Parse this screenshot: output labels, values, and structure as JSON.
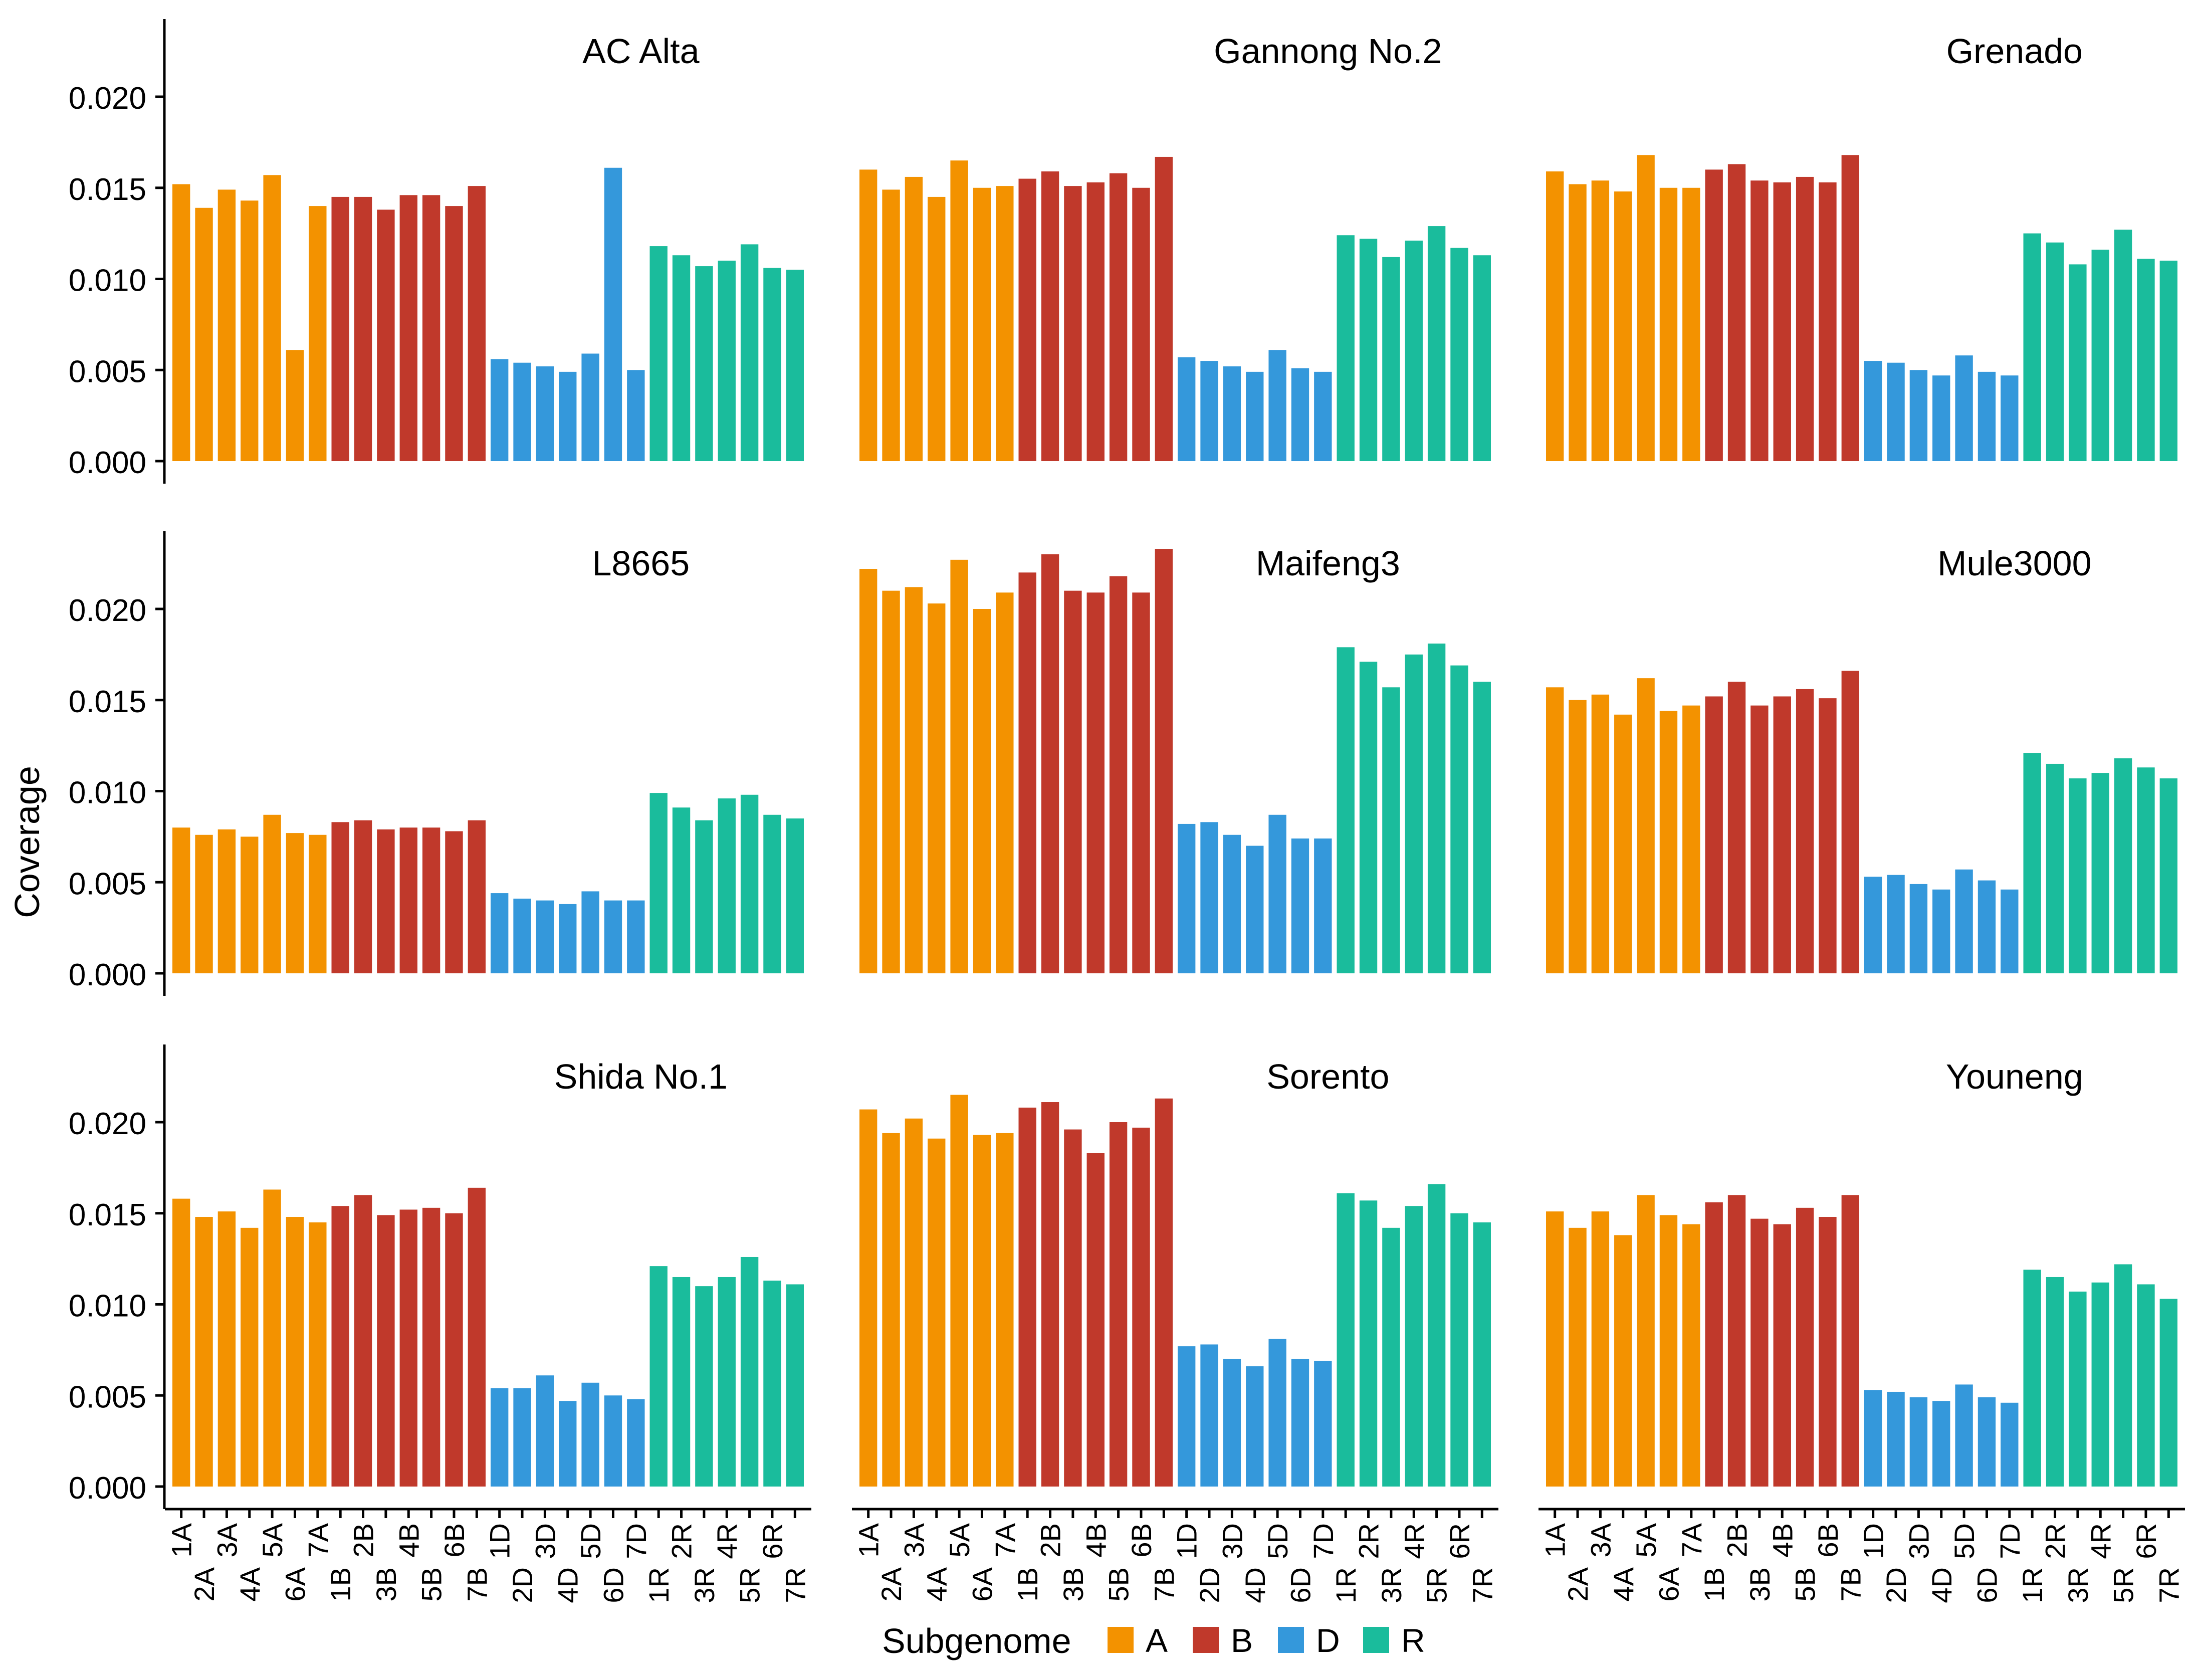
{
  "chart_data": {
    "type": "bar",
    "layout": "faceted 3x3 grid",
    "ylabel": "Coverage",
    "ylim": [
      0,
      0.024
    ],
    "yticks": [
      "0.000",
      "0.005",
      "0.010",
      "0.015",
      "0.020"
    ],
    "grid": false,
    "categories": [
      "1A",
      "2A",
      "3A",
      "4A",
      "5A",
      "6A",
      "7A",
      "1B",
      "2B",
      "3B",
      "4B",
      "5B",
      "6B",
      "7B",
      "1D",
      "2D",
      "3D",
      "4D",
      "5D",
      "6D",
      "7D",
      "1R",
      "2R",
      "3R",
      "4R",
      "5R",
      "6R",
      "7R"
    ],
    "legend": {
      "title": "Subgenome",
      "placement": "bottom-center",
      "entries": [
        {
          "label": "A",
          "color": "#F39200"
        },
        {
          "label": "B",
          "color": "#C0392B"
        },
        {
          "label": "D",
          "color": "#3498DB"
        },
        {
          "label": "R",
          "color": "#1ABC9C"
        }
      ]
    },
    "panels": [
      {
        "title": "AC Alta",
        "values": [
          0.0152,
          0.0139,
          0.0149,
          0.0143,
          0.0157,
          0.0061,
          0.014,
          0.0145,
          0.0145,
          0.0138,
          0.0146,
          0.0146,
          0.014,
          0.0151,
          0.0056,
          0.0054,
          0.0052,
          0.0049,
          0.0059,
          0.0161,
          0.005,
          0.0118,
          0.0113,
          0.0107,
          0.011,
          0.0119,
          0.0106,
          0.0105
        ]
      },
      {
        "title": "Gannong No.2",
        "values": [
          0.016,
          0.0149,
          0.0156,
          0.0145,
          0.0165,
          0.015,
          0.0151,
          0.0155,
          0.0159,
          0.0151,
          0.0153,
          0.0158,
          0.015,
          0.0167,
          0.0057,
          0.0055,
          0.0052,
          0.0049,
          0.0061,
          0.0051,
          0.0049,
          0.0124,
          0.0122,
          0.0112,
          0.0121,
          0.0129,
          0.0117,
          0.0113
        ]
      },
      {
        "title": "Grenado",
        "values": [
          0.0159,
          0.0152,
          0.0154,
          0.0148,
          0.0168,
          0.015,
          0.015,
          0.016,
          0.0163,
          0.0154,
          0.0153,
          0.0156,
          0.0153,
          0.0168,
          0.0055,
          0.0054,
          0.005,
          0.0047,
          0.0058,
          0.0049,
          0.0047,
          0.0125,
          0.012,
          0.0108,
          0.0116,
          0.0127,
          0.0111,
          0.011
        ]
      },
      {
        "title": "L8665",
        "values": [
          0.008,
          0.0076,
          0.0079,
          0.0075,
          0.0087,
          0.0077,
          0.0076,
          0.0083,
          0.0084,
          0.0079,
          0.008,
          0.008,
          0.0078,
          0.0084,
          0.0044,
          0.0041,
          0.004,
          0.0038,
          0.0045,
          0.004,
          0.004,
          0.0099,
          0.0091,
          0.0084,
          0.0096,
          0.0098,
          0.0087,
          0.0085
        ]
      },
      {
        "title": "Maifeng3",
        "values": [
          0.0222,
          0.021,
          0.0212,
          0.0203,
          0.0227,
          0.02,
          0.0209,
          0.022,
          0.023,
          0.021,
          0.0209,
          0.0218,
          0.0209,
          0.0233,
          0.0082,
          0.0083,
          0.0076,
          0.007,
          0.0087,
          0.0074,
          0.0074,
          0.0179,
          0.0171,
          0.0157,
          0.0175,
          0.0181,
          0.0169,
          0.016
        ]
      },
      {
        "title": "Mule3000",
        "values": [
          0.0157,
          0.015,
          0.0153,
          0.0142,
          0.0162,
          0.0144,
          0.0147,
          0.0152,
          0.016,
          0.0147,
          0.0152,
          0.0156,
          0.0151,
          0.0166,
          0.0053,
          0.0054,
          0.0049,
          0.0046,
          0.0057,
          0.0051,
          0.0046,
          0.0121,
          0.0115,
          0.0107,
          0.011,
          0.0118,
          0.0113,
          0.0107
        ]
      },
      {
        "title": "Shida No.1",
        "values": [
          0.0158,
          0.0148,
          0.0151,
          0.0142,
          0.0163,
          0.0148,
          0.0145,
          0.0154,
          0.016,
          0.0149,
          0.0152,
          0.0153,
          0.015,
          0.0164,
          0.0054,
          0.0054,
          0.0061,
          0.0047,
          0.0057,
          0.005,
          0.0048,
          0.0121,
          0.0115,
          0.011,
          0.0115,
          0.0126,
          0.0113,
          0.0111
        ]
      },
      {
        "title": "Sorento",
        "values": [
          0.0207,
          0.0194,
          0.0202,
          0.0191,
          0.0215,
          0.0193,
          0.0194,
          0.0208,
          0.0211,
          0.0196,
          0.0183,
          0.02,
          0.0197,
          0.0213,
          0.0077,
          0.0078,
          0.007,
          0.0066,
          0.0081,
          0.007,
          0.0069,
          0.0161,
          0.0157,
          0.0142,
          0.0154,
          0.0166,
          0.015,
          0.0145
        ]
      },
      {
        "title": "Youneng",
        "values": [
          0.0151,
          0.0142,
          0.0151,
          0.0138,
          0.016,
          0.0149,
          0.0144,
          0.0156,
          0.016,
          0.0147,
          0.0144,
          0.0153,
          0.0148,
          0.016,
          0.0053,
          0.0052,
          0.0049,
          0.0047,
          0.0056,
          0.0049,
          0.0046,
          0.0119,
          0.0115,
          0.0107,
          0.0112,
          0.0122,
          0.0111,
          0.0103
        ]
      }
    ]
  }
}
